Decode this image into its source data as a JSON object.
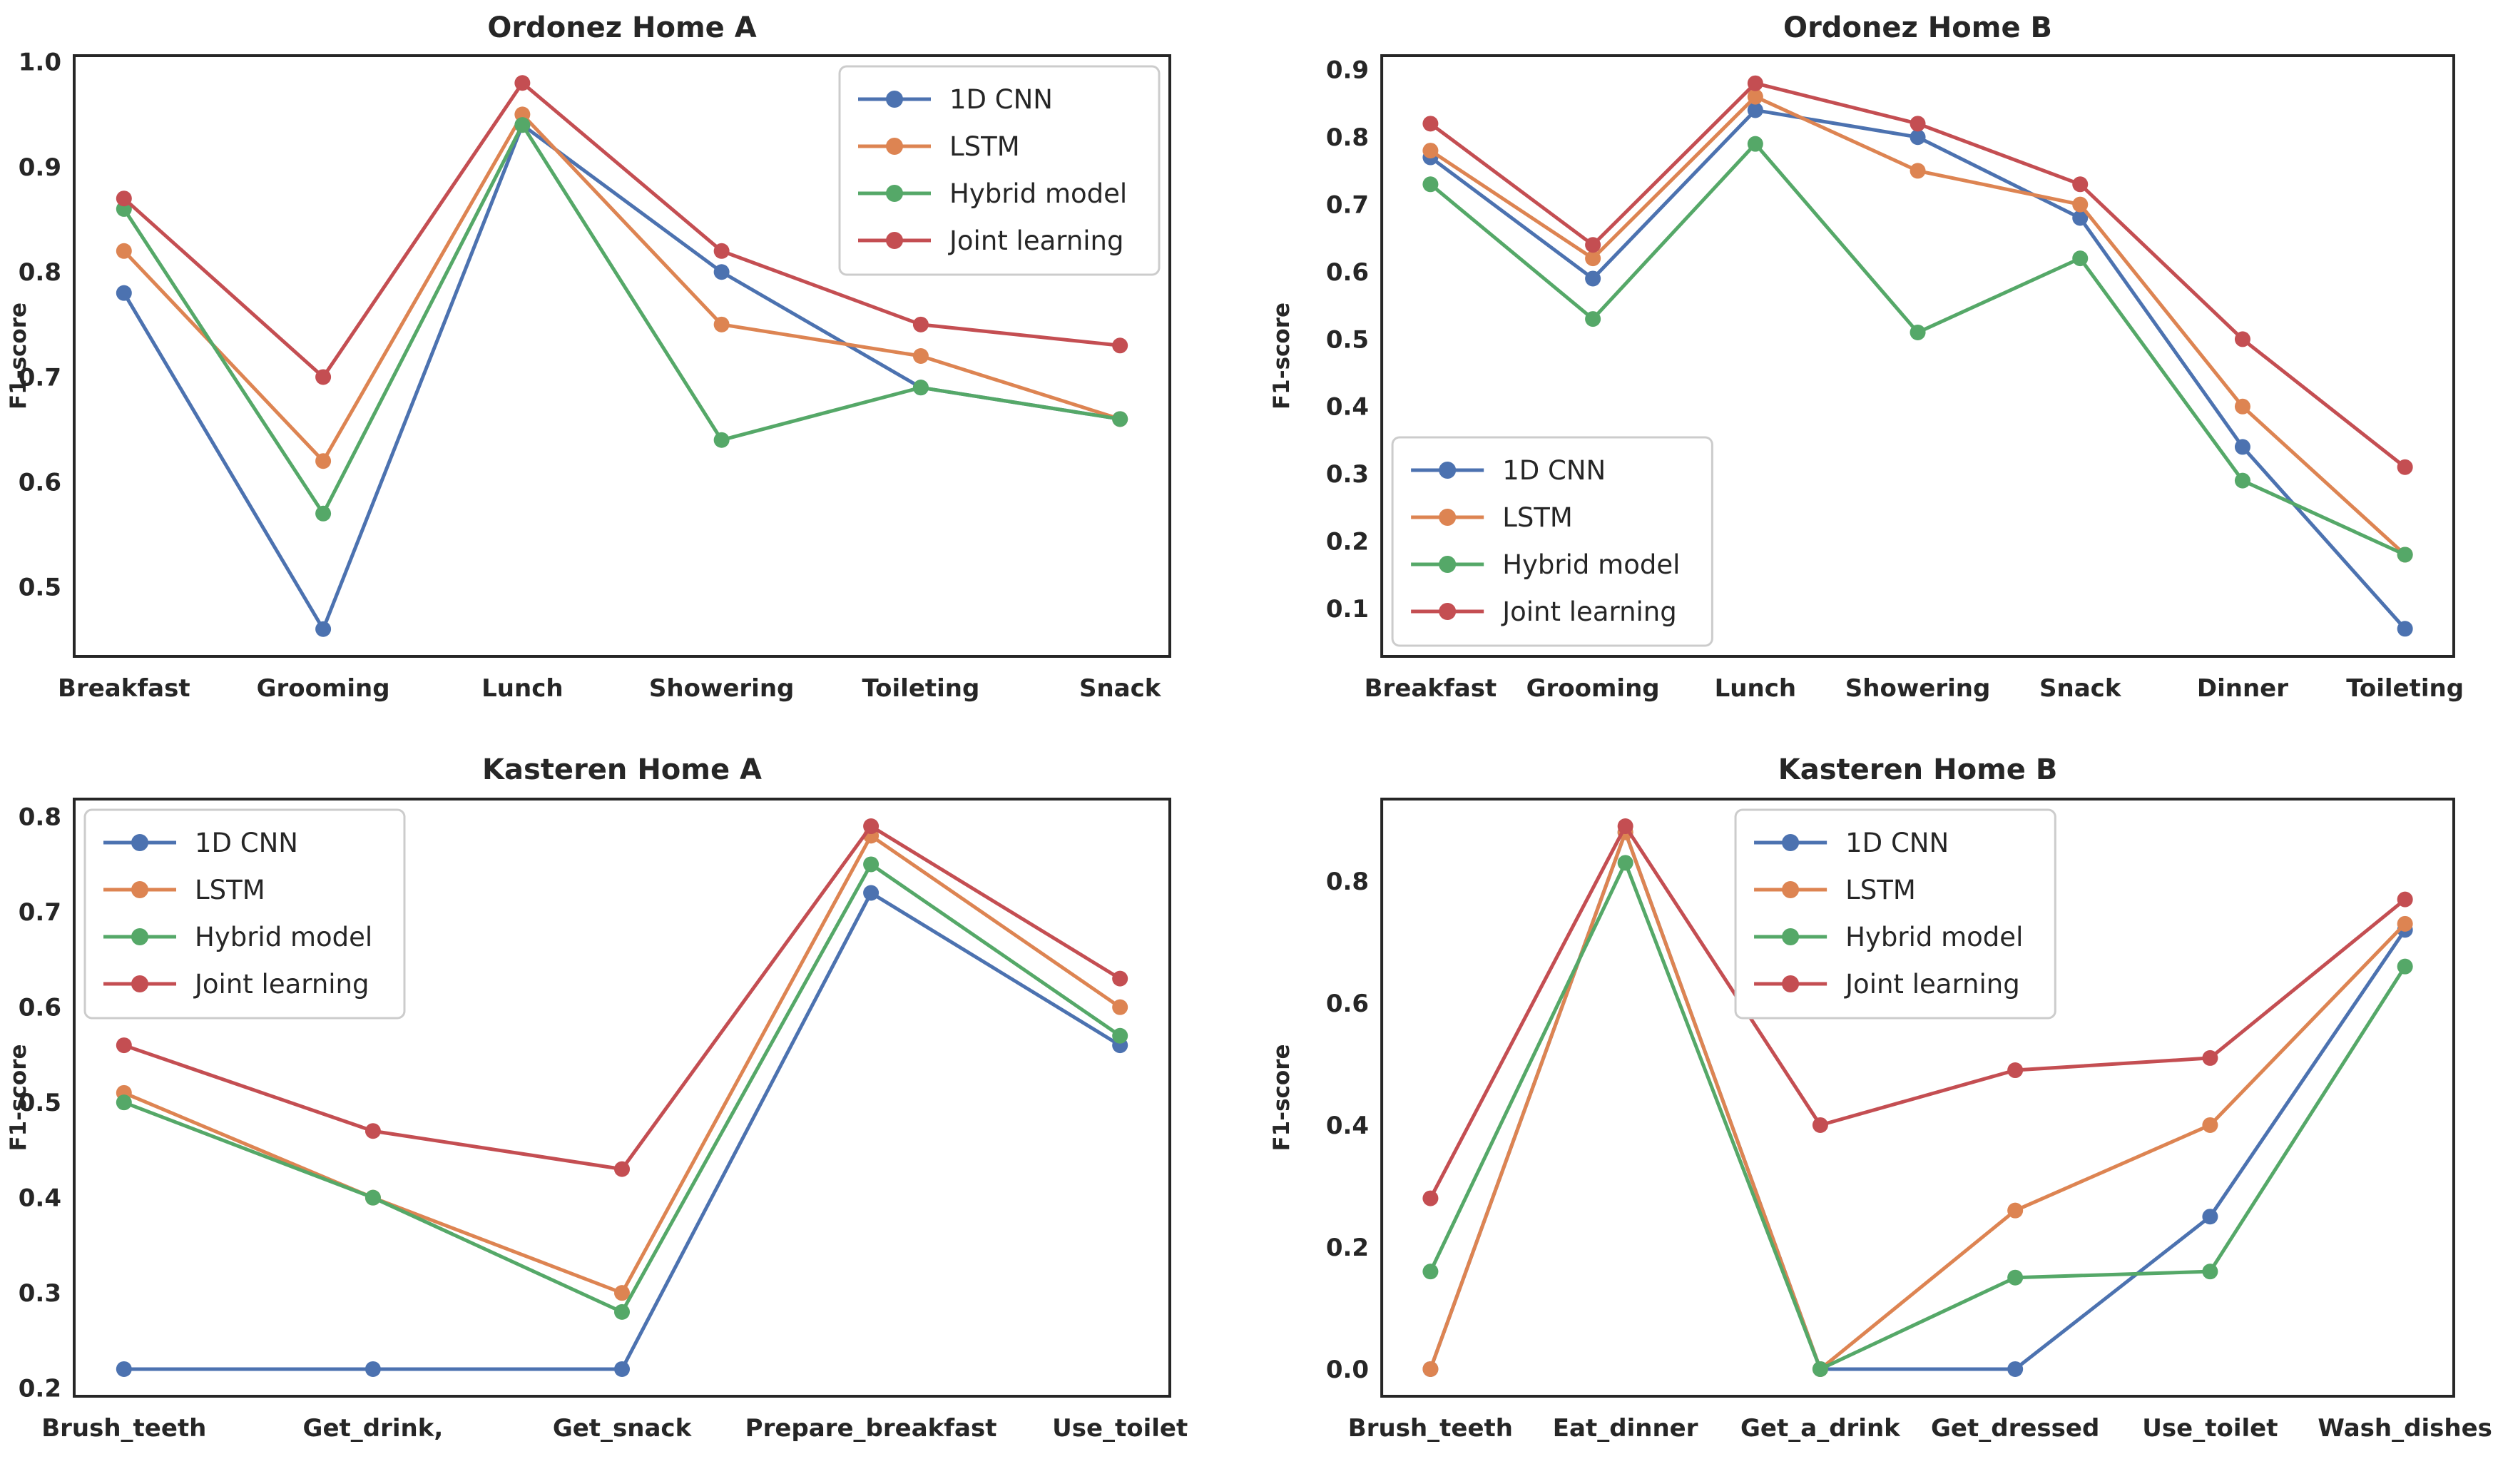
{
  "figure": {
    "background_color": "#ffffff",
    "text_color": "#262626",
    "spine_color": "#262626",
    "legend_border_color": "#cccccc",
    "ylabel": "F1-score"
  },
  "chart_data": [
    {
      "type": "line",
      "title": "Ordonez Home A",
      "xlabel": "",
      "ylabel": "F1-score",
      "categories": [
        "Breakfast",
        "Grooming",
        "Lunch",
        "Showering",
        "Toileting",
        "Snack"
      ],
      "series": [
        {
          "name": "1D CNN",
          "color": "#4C72B0",
          "values": [
            0.78,
            0.46,
            0.94,
            0.8,
            0.69,
            0.66
          ]
        },
        {
          "name": "LSTM",
          "color": "#DD8452",
          "values": [
            0.82,
            0.62,
            0.95,
            0.75,
            0.72,
            0.66
          ]
        },
        {
          "name": "Hybrid model",
          "color": "#55A868",
          "values": [
            0.86,
            0.57,
            0.94,
            0.64,
            0.69,
            0.66
          ]
        },
        {
          "name": "Joint learning",
          "color": "#C44E52",
          "values": [
            0.87,
            0.7,
            0.98,
            0.82,
            0.75,
            0.73
          ]
        }
      ],
      "yticks": [
        0.5,
        0.6,
        0.7,
        0.8,
        0.9,
        1.0
      ],
      "ylim": [
        0.434,
        1.006
      ],
      "legend_position": "upper-right",
      "grid": false
    },
    {
      "type": "line",
      "title": "Ordonez Home B",
      "xlabel": "",
      "ylabel": "F1-score",
      "categories": [
        "Breakfast",
        "Grooming",
        "Lunch",
        "Showering",
        "Snack",
        "Dinner",
        "Toileting"
      ],
      "series": [
        {
          "name": "1D CNN",
          "color": "#4C72B0",
          "values": [
            0.77,
            0.59,
            0.84,
            0.8,
            0.68,
            0.34,
            0.07
          ]
        },
        {
          "name": "LSTM",
          "color": "#DD8452",
          "values": [
            0.78,
            0.62,
            0.86,
            0.75,
            0.7,
            0.4,
            0.18
          ]
        },
        {
          "name": "Hybrid model",
          "color": "#55A868",
          "values": [
            0.73,
            0.53,
            0.79,
            0.51,
            0.62,
            0.29,
            0.18
          ]
        },
        {
          "name": "Joint learning",
          "color": "#C44E52",
          "values": [
            0.82,
            0.64,
            0.88,
            0.82,
            0.73,
            0.5,
            0.31
          ]
        }
      ],
      "yticks": [
        0.1,
        0.2,
        0.3,
        0.4,
        0.5,
        0.6,
        0.7,
        0.8,
        0.9
      ],
      "ylim": [
        0.029,
        0.921
      ],
      "legend_position": "lower-left",
      "grid": false
    },
    {
      "type": "line",
      "title": "Kasteren Home A",
      "xlabel": "",
      "ylabel": "F1-score",
      "categories": [
        "Brush_teeth",
        "Get_drink,",
        "Get_snack",
        "Prepare_breakfast",
        "Use_toilet"
      ],
      "series": [
        {
          "name": "1D CNN",
          "color": "#4C72B0",
          "values": [
            0.22,
            0.22,
            0.22,
            0.72,
            0.56
          ]
        },
        {
          "name": "LSTM",
          "color": "#DD8452",
          "values": [
            0.51,
            0.4,
            0.3,
            0.78,
            0.6
          ]
        },
        {
          "name": "Hybrid model",
          "color": "#55A868",
          "values": [
            0.5,
            0.4,
            0.28,
            0.75,
            0.57
          ]
        },
        {
          "name": "Joint learning",
          "color": "#C44E52",
          "values": [
            0.56,
            0.47,
            0.43,
            0.79,
            0.63
          ]
        }
      ],
      "yticks": [
        0.2,
        0.3,
        0.4,
        0.5,
        0.6,
        0.7,
        0.8
      ],
      "ylim": [
        0.1915,
        0.8185
      ],
      "legend_position": "upper-left",
      "grid": false
    },
    {
      "type": "line",
      "title": "Kasteren Home B",
      "xlabel": "",
      "ylabel": "F1-score",
      "categories": [
        "Brush_teeth",
        "Eat_dinner",
        "Get_a_drink",
        "Get_dressed",
        "Use_toilet",
        "Wash_dishes"
      ],
      "series": [
        {
          "name": "1D CNN",
          "color": "#4C72B0",
          "values": [
            0.0,
            0.88,
            0.0,
            0.0,
            0.25,
            0.72
          ]
        },
        {
          "name": "LSTM",
          "color": "#DD8452",
          "values": [
            0.0,
            0.88,
            0.0,
            0.26,
            0.4,
            0.73
          ]
        },
        {
          "name": "Hybrid model",
          "color": "#55A868",
          "values": [
            0.16,
            0.83,
            0.0,
            0.15,
            0.16,
            0.66
          ]
        },
        {
          "name": "Joint learning",
          "color": "#C44E52",
          "values": [
            0.28,
            0.89,
            0.4,
            0.49,
            0.51,
            0.77
          ]
        }
      ],
      "yticks": [
        0.0,
        0.2,
        0.4,
        0.6,
        0.8
      ],
      "ylim": [
        -0.0445,
        0.9345
      ],
      "legend_position": "upper-center",
      "grid": false
    }
  ]
}
